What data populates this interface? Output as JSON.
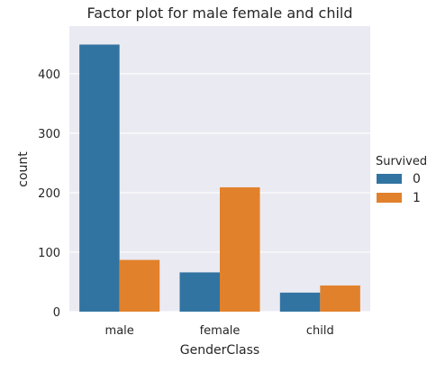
{
  "chart_data": {
    "type": "bar",
    "title": "Factor plot for male female and child",
    "xlabel": "GenderClass",
    "ylabel": "count",
    "categories": [
      "male",
      "female",
      "child"
    ],
    "series": [
      {
        "name": "0",
        "values": [
          449,
          66,
          32
        ],
        "color": "#3274a1"
      },
      {
        "name": "1",
        "values": [
          87,
          209,
          44
        ],
        "color": "#e1812c"
      }
    ],
    "ylim": [
      0,
      480
    ],
    "yticks": [
      0,
      100,
      200,
      300,
      400
    ],
    "legend": {
      "title": "Survived",
      "placement": "right"
    },
    "grid": true,
    "background": "#eaeaf2"
  }
}
